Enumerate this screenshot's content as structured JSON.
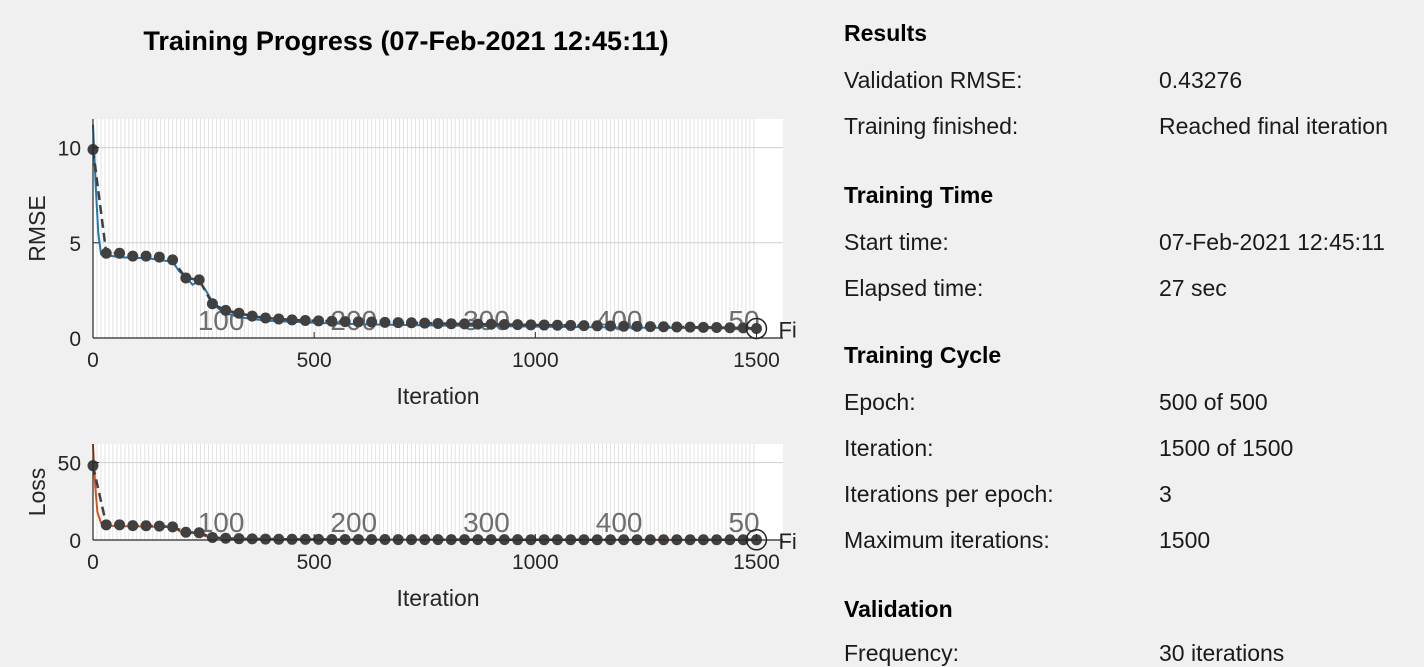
{
  "title": "Training Progress (07-Feb-2021 12:45:11)",
  "colors": {
    "rmse_line": "#1f77b4",
    "loss_line": "#d95319",
    "validation_marker": "#404040",
    "grid": "#dcdcdc",
    "background": "#f0f0f0"
  },
  "epoch_labels": [
    "100",
    "200",
    "300",
    "400",
    "50"
  ],
  "final_marker_label": "Fi",
  "chart_data": [
    {
      "type": "line",
      "ylabel": "RMSE",
      "xlabel": "Iteration",
      "xlim": [
        0,
        1560
      ],
      "ylim": [
        0,
        11.5
      ],
      "xticks": [
        "0",
        "500",
        "1000",
        "1500"
      ],
      "yticks": [
        "0",
        "5",
        "10"
      ],
      "series": [
        {
          "x": [
            0,
            6,
            12,
            18,
            24,
            30,
            60,
            90,
            120,
            150,
            180,
            195,
            210,
            225,
            240,
            255,
            270,
            285,
            300,
            330,
            360,
            400,
            450,
            500,
            600,
            800,
            1000,
            1200,
            1500
          ],
          "values": [
            11.2,
            8.0,
            5.5,
            4.4,
            4.3,
            4.35,
            4.25,
            4.2,
            4.2,
            4.1,
            4.0,
            3.5,
            3.2,
            2.8,
            3.0,
            2.5,
            1.9,
            1.5,
            1.3,
            1.1,
            1.0,
            0.9,
            0.85,
            0.8,
            0.72,
            0.65,
            0.6,
            0.55,
            0.5
          ]
        },
        {
          "x": [
            0,
            30,
            60,
            90,
            120,
            150,
            180,
            210,
            240,
            270,
            300,
            330,
            360,
            390,
            420,
            450,
            480,
            510,
            540,
            570,
            600,
            630,
            660,
            690,
            720,
            750,
            780,
            810,
            840,
            870,
            900,
            930,
            960,
            990,
            1020,
            1050,
            1080,
            1110,
            1140,
            1170,
            1200,
            1230,
            1260,
            1290,
            1320,
            1350,
            1380,
            1410,
            1440,
            1470,
            1500
          ],
          "values": [
            9.9,
            4.45,
            4.45,
            4.3,
            4.3,
            4.25,
            4.1,
            3.15,
            3.05,
            1.8,
            1.45,
            1.3,
            1.15,
            1.05,
            1.0,
            0.95,
            0.92,
            0.9,
            0.88,
            0.86,
            0.85,
            0.84,
            0.82,
            0.81,
            0.8,
            0.78,
            0.76,
            0.75,
            0.74,
            0.73,
            0.72,
            0.71,
            0.7,
            0.69,
            0.68,
            0.67,
            0.66,
            0.65,
            0.64,
            0.63,
            0.62,
            0.61,
            0.6,
            0.59,
            0.58,
            0.57,
            0.56,
            0.55,
            0.54,
            0.53,
            0.5
          ]
        }
      ]
    },
    {
      "type": "line",
      "ylabel": "Loss",
      "xlabel": "Iteration",
      "xlim": [
        0,
        1560
      ],
      "ylim": [
        0,
        62
      ],
      "xticks": [
        "0",
        "500",
        "1000",
        "1500"
      ],
      "yticks": [
        "0",
        "50"
      ],
      "series": [
        {
          "x": [
            0,
            5,
            10,
            18,
            25,
            35,
            100,
            180,
            200,
            230,
            260,
            300,
            400,
            600,
            1000,
            1500
          ],
          "values": [
            62,
            35,
            18,
            11,
            9.5,
            9.2,
            8.8,
            8.3,
            5.0,
            4.5,
            2.0,
            1.0,
            0.5,
            0.3,
            0.2,
            0.1
          ]
        },
        {
          "x": [
            0,
            30,
            60,
            90,
            120,
            150,
            180,
            210,
            240,
            270,
            300,
            330,
            360,
            390,
            420,
            450,
            480,
            510,
            540,
            570,
            600,
            630,
            660,
            690,
            720,
            750,
            780,
            810,
            840,
            870,
            900,
            930,
            960,
            990,
            1020,
            1050,
            1080,
            1110,
            1140,
            1170,
            1200,
            1230,
            1260,
            1290,
            1320,
            1350,
            1380,
            1410,
            1440,
            1470,
            1500
          ],
          "values": [
            48,
            9.8,
            9.8,
            9.3,
            9.2,
            9.0,
            8.5,
            5.0,
            4.7,
            1.6,
            1.1,
            0.85,
            0.7,
            0.6,
            0.5,
            0.45,
            0.4,
            0.38,
            0.36,
            0.34,
            0.32,
            0.3,
            0.3,
            0.28,
            0.27,
            0.26,
            0.25,
            0.25,
            0.24,
            0.23,
            0.22,
            0.22,
            0.21,
            0.2,
            0.2,
            0.19,
            0.19,
            0.18,
            0.18,
            0.17,
            0.17,
            0.16,
            0.16,
            0.16,
            0.15,
            0.15,
            0.15,
            0.14,
            0.14,
            0.14,
            0.13
          ]
        }
      ]
    }
  ],
  "sections": {
    "results": {
      "title": "Results",
      "rows": [
        {
          "label": "Validation RMSE:",
          "value": "0.43276"
        },
        {
          "label": "Training finished:",
          "value": "Reached final iteration"
        }
      ]
    },
    "training_time": {
      "title": "Training Time",
      "rows": [
        {
          "label": "Start time:",
          "value": "07-Feb-2021 12:45:11"
        },
        {
          "label": "Elapsed time:",
          "value": "27 sec"
        }
      ]
    },
    "training_cycle": {
      "title": "Training Cycle",
      "rows": [
        {
          "label": "Epoch:",
          "value": "500 of 500"
        },
        {
          "label": "Iteration:",
          "value": "1500 of 1500"
        },
        {
          "label": "Iterations per epoch:",
          "value": "3"
        },
        {
          "label": "Maximum iterations:",
          "value": "1500"
        }
      ]
    },
    "validation": {
      "title": "Validation",
      "rows": [
        {
          "label": "Frequency:",
          "value": "30 iterations"
        }
      ]
    }
  }
}
